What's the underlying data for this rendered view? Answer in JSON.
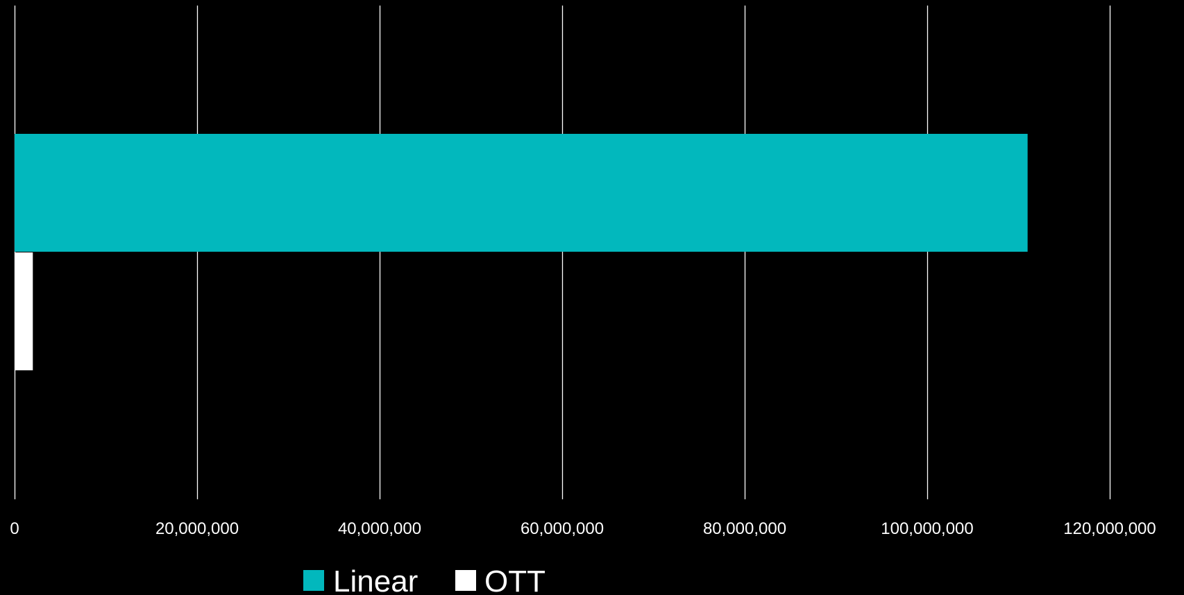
{
  "chart_data": {
    "type": "bar",
    "orientation": "horizontal",
    "categories": [
      ""
    ],
    "series": [
      {
        "name": "Linear",
        "values": [
          111000000
        ],
        "color": "#02B8BD"
      },
      {
        "name": "OTT",
        "values": [
          2000000
        ],
        "color": "#FFFFFF"
      }
    ],
    "xlim": [
      0,
      120000000
    ],
    "x_ticks": [
      0,
      20000000,
      40000000,
      60000000,
      80000000,
      100000000,
      120000000
    ],
    "x_tick_labels": [
      "0",
      "20,000,000",
      "40,000,000",
      "60,000,000",
      "80,000,000",
      "100,000,000",
      "120,000,000"
    ],
    "grid": "vertical",
    "legend": "bottom",
    "background": "#000000",
    "gridline_color": "#FFFFFF",
    "title": "",
    "xlabel": "",
    "ylabel": ""
  }
}
